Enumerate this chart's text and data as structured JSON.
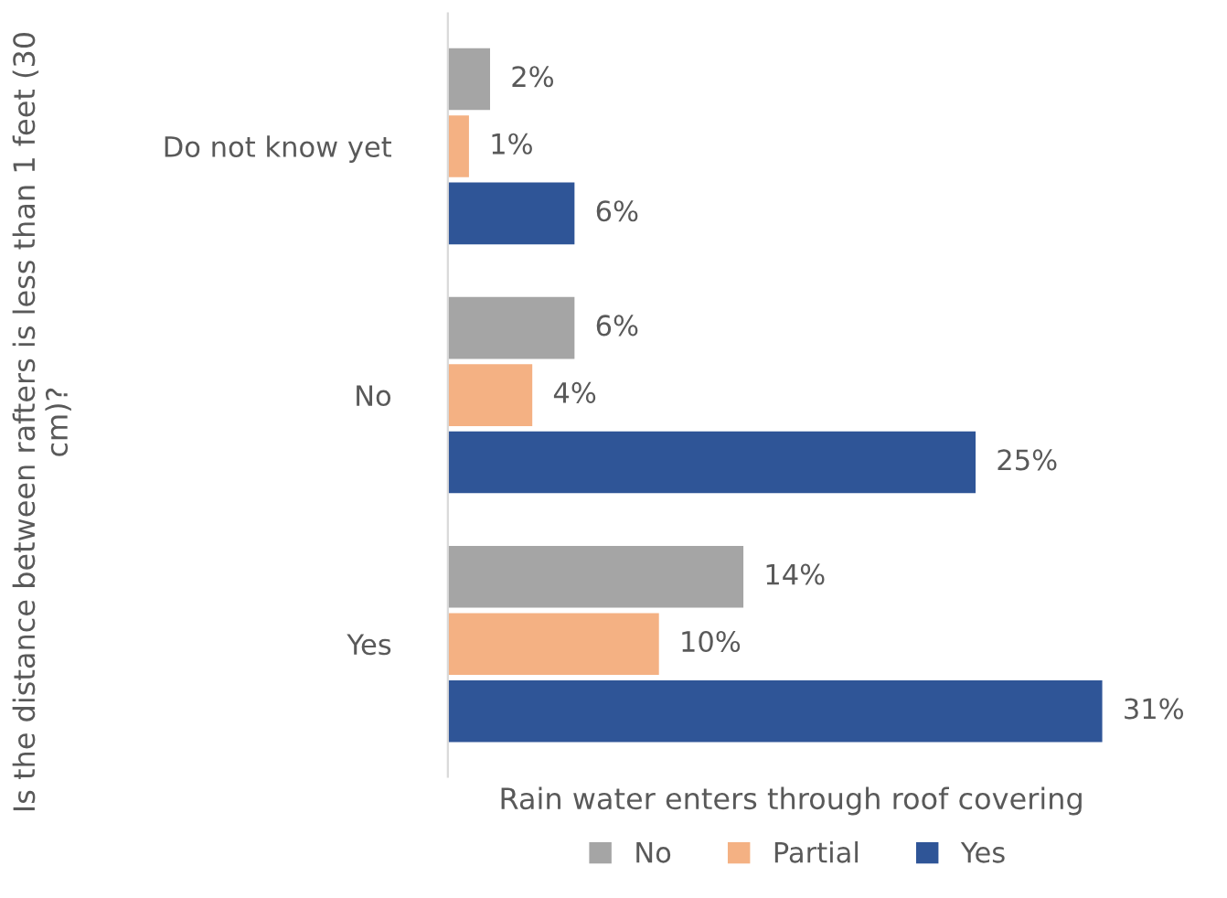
{
  "chart_data": {
    "type": "bar",
    "orientation": "horizontal",
    "xlabel": "Rain water enters through roof covering",
    "ylabel": "Is the distance between rafters is less than 1 feet (30 cm)?",
    "categories": [
      "Do not know yet",
      "No",
      "Yes"
    ],
    "series": [
      {
        "name": "No",
        "color": "#a5a5a5",
        "values": [
          2,
          6,
          14
        ],
        "value_labels": [
          "2%",
          "6%",
          "14%"
        ]
      },
      {
        "name": "Partial",
        "color": "#f4b183",
        "values": [
          1,
          4,
          10
        ],
        "value_labels": [
          "1%",
          "4%",
          "10%"
        ]
      },
      {
        "name": "Yes",
        "color": "#2f5597",
        "values": [
          6,
          25,
          31
        ],
        "value_labels": [
          "6%",
          "25%",
          "31%"
        ]
      }
    ],
    "legend": "bottom",
    "grid": false
  }
}
